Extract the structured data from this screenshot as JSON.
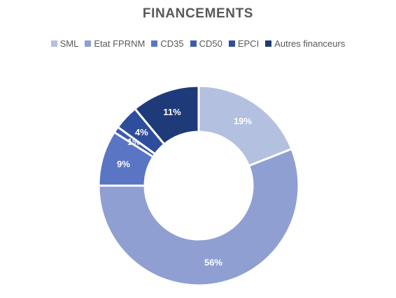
{
  "chart_data": {
    "type": "pie",
    "title": "FINANCEMENTS",
    "donut": true,
    "legend_position": "top",
    "categories": [
      "SML",
      "Etat FPRNM",
      "CD35",
      "CD50",
      "EPCI",
      "Autres financeurs"
    ],
    "values": [
      19,
      56,
      9,
      1,
      4,
      11
    ],
    "data_labels": [
      "19%",
      "56%",
      "9%",
      "1%",
      "4%",
      "11%"
    ],
    "colors": [
      "#b4c0e0",
      "#8f9fd1",
      "#5a75c4",
      "#3d5cae",
      "#2e4d9c",
      "#1f3a78"
    ]
  }
}
